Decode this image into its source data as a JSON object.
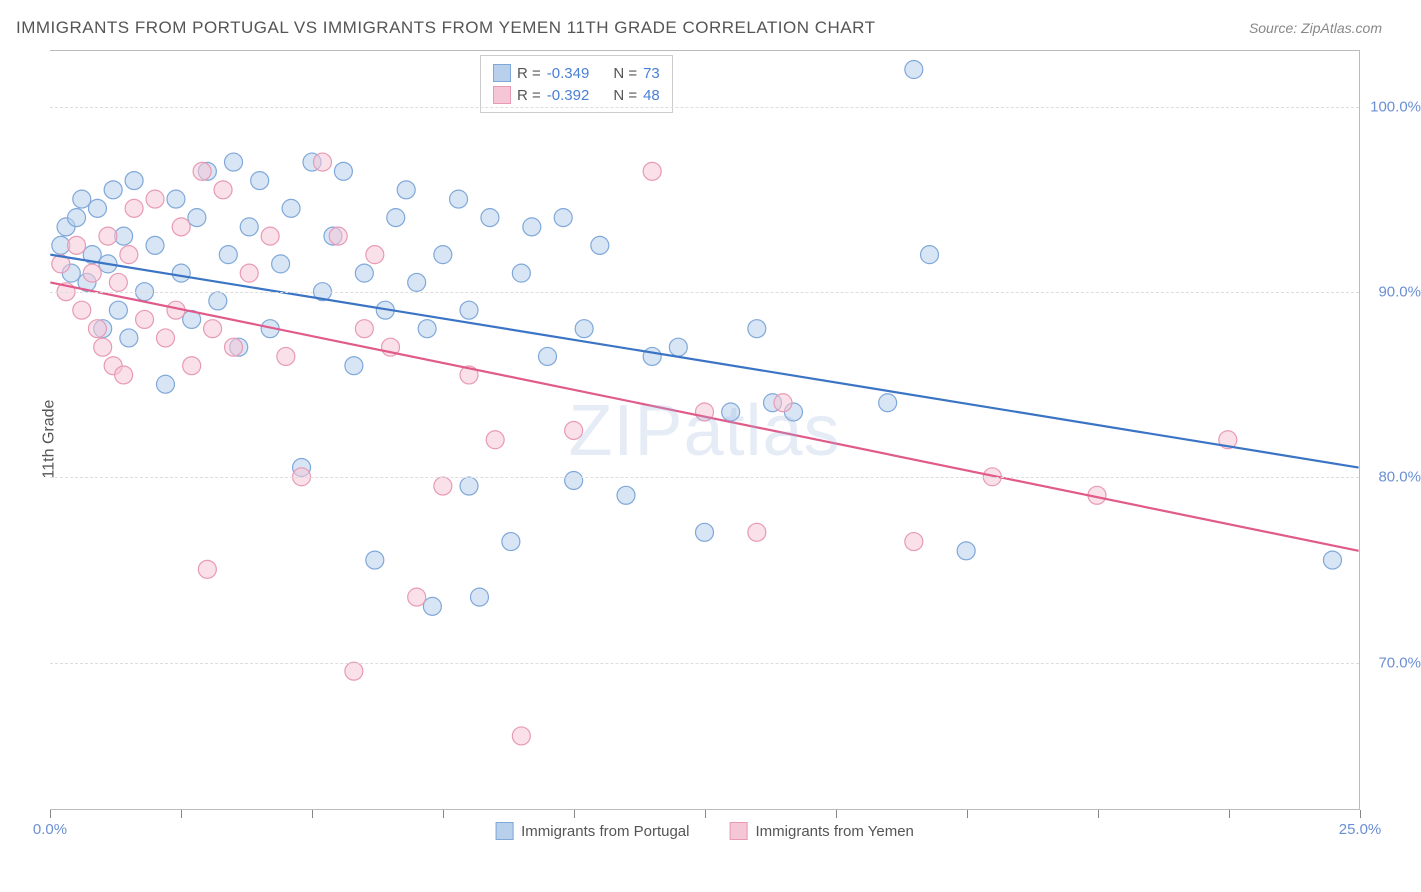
{
  "title": "IMMIGRANTS FROM PORTUGAL VS IMMIGRANTS FROM YEMEN 11TH GRADE CORRELATION CHART",
  "source": "Source: ZipAtlas.com",
  "watermark": "ZIPatlas",
  "y_axis_label": "11th Grade",
  "chart": {
    "type": "scatter",
    "xlim": [
      0,
      25
    ],
    "ylim": [
      62,
      103
    ],
    "y_ticks": [
      70,
      80,
      90,
      100
    ],
    "y_tick_labels": [
      "70.0%",
      "80.0%",
      "90.0%",
      "100.0%"
    ],
    "x_ticks": [
      0,
      2.5,
      5,
      7.5,
      10,
      12.5,
      15,
      17.5,
      20,
      22.5,
      25
    ],
    "x_tick_labels_shown": {
      "0": "0.0%",
      "25": "25.0%"
    },
    "grid_color": "#dddddd",
    "background_color": "#ffffff",
    "series": [
      {
        "name": "Immigrants from Portugal",
        "fill": "#b8d0ec",
        "stroke": "#7fa8d9",
        "line_color": "#3b74c4",
        "marker_radius": 9,
        "fill_opacity": 0.55,
        "R": "-0.349",
        "N": "73",
        "trend": {
          "x1": 0,
          "y1": 92.0,
          "x2": 25,
          "y2": 80.5
        },
        "points": [
          [
            0.2,
            92.5
          ],
          [
            0.3,
            93.5
          ],
          [
            0.4,
            91.0
          ],
          [
            0.5,
            94.0
          ],
          [
            0.6,
            95.0
          ],
          [
            0.7,
            90.5
          ],
          [
            0.8,
            92.0
          ],
          [
            0.9,
            94.5
          ],
          [
            1.0,
            88.0
          ],
          [
            1.1,
            91.5
          ],
          [
            1.2,
            95.5
          ],
          [
            1.3,
            89.0
          ],
          [
            1.4,
            93.0
          ],
          [
            1.5,
            87.5
          ],
          [
            1.6,
            96.0
          ],
          [
            1.8,
            90.0
          ],
          [
            2.0,
            92.5
          ],
          [
            2.2,
            85.0
          ],
          [
            2.4,
            95.0
          ],
          [
            2.5,
            91.0
          ],
          [
            2.7,
            88.5
          ],
          [
            2.8,
            94.0
          ],
          [
            3.0,
            96.5
          ],
          [
            3.2,
            89.5
          ],
          [
            3.4,
            92.0
          ],
          [
            3.5,
            97.0
          ],
          [
            3.6,
            87.0
          ],
          [
            3.8,
            93.5
          ],
          [
            4.0,
            96.0
          ],
          [
            4.2,
            88.0
          ],
          [
            4.4,
            91.5
          ],
          [
            4.6,
            94.5
          ],
          [
            4.8,
            80.5
          ],
          [
            5.0,
            97.0
          ],
          [
            5.2,
            90.0
          ],
          [
            5.4,
            93.0
          ],
          [
            5.6,
            96.5
          ],
          [
            5.8,
            86.0
          ],
          [
            6.0,
            91.0
          ],
          [
            6.2,
            75.5
          ],
          [
            6.4,
            89.0
          ],
          [
            6.6,
            94.0
          ],
          [
            6.8,
            95.5
          ],
          [
            7.0,
            90.5
          ],
          [
            7.2,
            88.0
          ],
          [
            7.3,
            73.0
          ],
          [
            7.5,
            92.0
          ],
          [
            7.8,
            95.0
          ],
          [
            8.0,
            79.5
          ],
          [
            8.0,
            89.0
          ],
          [
            8.2,
            73.5
          ],
          [
            8.4,
            94.0
          ],
          [
            8.8,
            76.5
          ],
          [
            9.0,
            91.0
          ],
          [
            9.2,
            93.5
          ],
          [
            9.5,
            86.5
          ],
          [
            9.8,
            94.0
          ],
          [
            10.0,
            79.8
          ],
          [
            10.2,
            88.0
          ],
          [
            10.5,
            92.5
          ],
          [
            11.0,
            79.0
          ],
          [
            11.5,
            86.5
          ],
          [
            12.0,
            87.0
          ],
          [
            12.5,
            77.0
          ],
          [
            13.0,
            83.5
          ],
          [
            13.5,
            88.0
          ],
          [
            13.8,
            84.0
          ],
          [
            14.2,
            83.5
          ],
          [
            16.5,
            102.0
          ],
          [
            16.8,
            92.0
          ],
          [
            17.5,
            76.0
          ],
          [
            24.5,
            75.5
          ],
          [
            16.0,
            84.0
          ]
        ]
      },
      {
        "name": "Immigrants from Yemen",
        "fill": "#f5c6d6",
        "stroke": "#e89ab5",
        "line_color": "#e05a8a",
        "marker_radius": 9,
        "fill_opacity": 0.55,
        "R": "-0.392",
        "N": "48",
        "trend": {
          "x1": 0,
          "y1": 90.5,
          "x2": 25,
          "y2": 76.0
        },
        "points": [
          [
            0.2,
            91.5
          ],
          [
            0.3,
            90.0
          ],
          [
            0.5,
            92.5
          ],
          [
            0.6,
            89.0
          ],
          [
            0.8,
            91.0
          ],
          [
            0.9,
            88.0
          ],
          [
            1.0,
            87.0
          ],
          [
            1.1,
            93.0
          ],
          [
            1.2,
            86.0
          ],
          [
            1.3,
            90.5
          ],
          [
            1.4,
            85.5
          ],
          [
            1.5,
            92.0
          ],
          [
            1.6,
            94.5
          ],
          [
            1.8,
            88.5
          ],
          [
            2.0,
            95.0
          ],
          [
            2.2,
            87.5
          ],
          [
            2.4,
            89.0
          ],
          [
            2.5,
            93.5
          ],
          [
            2.7,
            86.0
          ],
          [
            2.9,
            96.5
          ],
          [
            3.1,
            88.0
          ],
          [
            3.3,
            95.5
          ],
          [
            3.5,
            87.0
          ],
          [
            3.8,
            91.0
          ],
          [
            3.0,
            75.0
          ],
          [
            4.2,
            93.0
          ],
          [
            4.5,
            86.5
          ],
          [
            4.8,
            80.0
          ],
          [
            5.2,
            97.0
          ],
          [
            5.5,
            93.0
          ],
          [
            5.8,
            69.5
          ],
          [
            6.0,
            88.0
          ],
          [
            6.2,
            92.0
          ],
          [
            6.5,
            87.0
          ],
          [
            7.0,
            73.5
          ],
          [
            7.5,
            79.5
          ],
          [
            8.0,
            85.5
          ],
          [
            8.5,
            82.0
          ],
          [
            9.0,
            66.0
          ],
          [
            10.0,
            82.5
          ],
          [
            11.5,
            96.5
          ],
          [
            12.5,
            83.5
          ],
          [
            13.5,
            77.0
          ],
          [
            16.5,
            76.5
          ],
          [
            18.0,
            80.0
          ],
          [
            20.0,
            79.0
          ],
          [
            22.5,
            82.0
          ],
          [
            14.0,
            84.0
          ]
        ]
      }
    ]
  },
  "legend_labels": {
    "R_label": "R =",
    "N_label": "N ="
  }
}
